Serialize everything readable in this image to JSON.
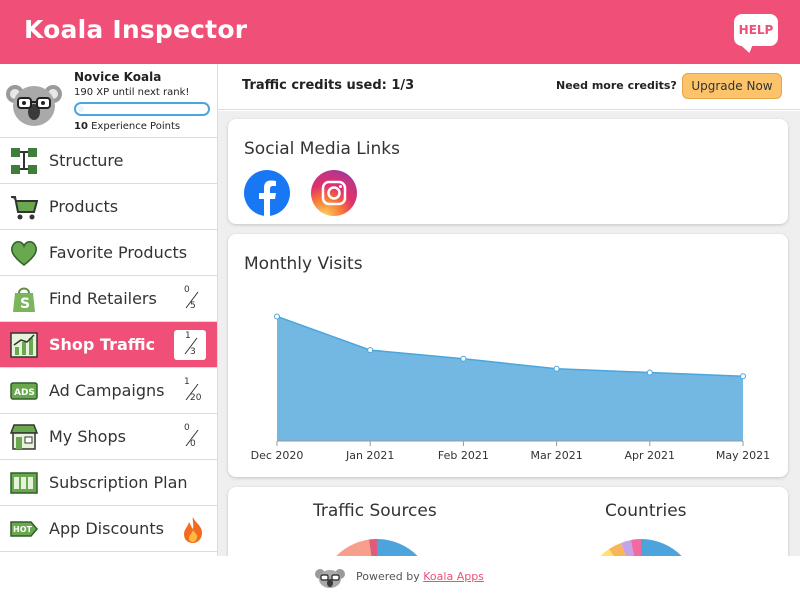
{
  "header": {
    "title": "Koala Inspector",
    "help_label": "HELP"
  },
  "profile": {
    "rank": "Novice Koala",
    "xp_to_next": "190 XP until next rank!",
    "xp_points": "10",
    "xp_points_label": "Experience Points",
    "xp_progress": 0.05
  },
  "sidebar": {
    "items": [
      {
        "label": "Structure",
        "icon": "structure-icon"
      },
      {
        "label": "Products",
        "icon": "cart-icon"
      },
      {
        "label": "Favorite Products",
        "icon": "heart-icon"
      },
      {
        "label": "Find Retailers",
        "icon": "shopify-bag-icon",
        "used": "0",
        "total": "5"
      },
      {
        "label": "Shop Traffic",
        "icon": "traffic-chart-icon",
        "used": "1",
        "total": "3",
        "active": true
      },
      {
        "label": "Ad Campaigns",
        "icon": "ads-icon",
        "used": "1",
        "total": "20"
      },
      {
        "label": "My Shops",
        "icon": "store-icon",
        "used": "0",
        "total": "0"
      },
      {
        "label": "Subscription Plan",
        "icon": "plan-icon"
      },
      {
        "label": "App Discounts",
        "icon": "hot-tag-icon",
        "badge": "fire-icon"
      }
    ]
  },
  "topbar": {
    "credits": "Traffic credits used: 1/3",
    "need_more": "Need more credits?",
    "upgrade_label": "Upgrade Now"
  },
  "social": {
    "title": "Social Media Links",
    "icons": [
      "facebook-icon",
      "instagram-icon"
    ]
  },
  "visits": {
    "title": "Monthly Visits"
  },
  "chart_data": {
    "type": "area",
    "title": "Monthly Visits",
    "categories": [
      "Dec 2020",
      "Jan 2021",
      "Feb 2021",
      "Mar 2021",
      "Apr 2021",
      "May 2021"
    ],
    "values": [
      100,
      73,
      66,
      58,
      55,
      52
    ],
    "ylim": [
      0,
      110
    ],
    "grid": false,
    "color": "#72b8e3"
  },
  "bottom": {
    "traffic_sources_title": "Traffic Sources",
    "countries_title": "Countries"
  },
  "footer": {
    "powered_by": "Powered by",
    "link_text": "Koala Apps"
  },
  "colors": {
    "brand": "#f04f78",
    "accent": "#fcc36a",
    "area": "#72b8e3",
    "line": "#4aa6de"
  }
}
